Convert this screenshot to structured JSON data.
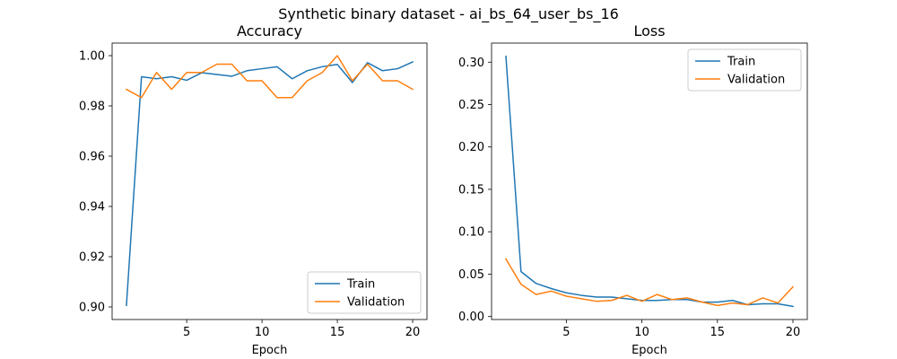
{
  "figure": {
    "suptitle": "Synthetic binary dataset - ai_bs_64_user_bs_16"
  },
  "chart_data": [
    {
      "type": "line",
      "title": "Accuracy",
      "xlabel": "Epoch",
      "ylabel": "",
      "xlim": [
        0.05,
        20.95
      ],
      "ylim": [
        0.895,
        1.005
      ],
      "xticks": [
        5,
        10,
        15,
        20
      ],
      "yticks": [
        0.9,
        0.92,
        0.94,
        0.96,
        0.98,
        1.0
      ],
      "ytick_labels": [
        "0.90",
        "0.92",
        "0.94",
        "0.96",
        "0.98",
        "1.00"
      ],
      "legend_position": "lower-right",
      "grid": false,
      "x": [
        1,
        2,
        3,
        4,
        5,
        6,
        7,
        8,
        9,
        10,
        11,
        12,
        13,
        14,
        15,
        16,
        17,
        18,
        19,
        20
      ],
      "series": [
        {
          "name": "Train",
          "color": "#1f77b4",
          "values": [
            0.9006,
            0.9916,
            0.9908,
            0.9916,
            0.9902,
            0.9932,
            0.9925,
            0.9918,
            0.994,
            0.9948,
            0.9956,
            0.9908,
            0.994,
            0.9956,
            0.9965,
            0.9893,
            0.9972,
            0.994,
            0.9948,
            0.9975
          ]
        },
        {
          "name": "Validation",
          "color": "#ff7f0e",
          "values": [
            0.9866,
            0.9833,
            0.9933,
            0.9866,
            0.9933,
            0.9933,
            0.9966,
            0.9966,
            0.99,
            0.99,
            0.9833,
            0.9833,
            0.99,
            0.9933,
            1.0,
            0.99,
            0.9966,
            0.99,
            0.99,
            0.9866
          ]
        }
      ]
    },
    {
      "type": "line",
      "title": "Loss",
      "xlabel": "Epoch",
      "ylabel": "",
      "xlim": [
        0.05,
        20.95
      ],
      "ylim": [
        -0.0035,
        0.3225
      ],
      "xticks": [
        5,
        10,
        15,
        20
      ],
      "yticks": [
        0.0,
        0.05,
        0.1,
        0.15,
        0.2,
        0.25,
        0.3
      ],
      "ytick_labels": [
        "0.00",
        "0.05",
        "0.10",
        "0.15",
        "0.20",
        "0.25",
        "0.30"
      ],
      "legend_position": "upper-right",
      "grid": false,
      "x": [
        1,
        2,
        3,
        4,
        5,
        6,
        7,
        8,
        9,
        10,
        11,
        12,
        13,
        14,
        15,
        16,
        17,
        18,
        19,
        20
      ],
      "series": [
        {
          "name": "Train",
          "color": "#1f77b4",
          "values": [
            0.307,
            0.053,
            0.039,
            0.033,
            0.028,
            0.025,
            0.023,
            0.023,
            0.021,
            0.019,
            0.019,
            0.02,
            0.02,
            0.017,
            0.017,
            0.019,
            0.014,
            0.015,
            0.015,
            0.012
          ]
        },
        {
          "name": "Validation",
          "color": "#ff7f0e",
          "values": [
            0.068,
            0.038,
            0.026,
            0.03,
            0.024,
            0.021,
            0.018,
            0.019,
            0.025,
            0.018,
            0.026,
            0.02,
            0.022,
            0.017,
            0.013,
            0.016,
            0.014,
            0.022,
            0.016,
            0.035
          ]
        }
      ]
    }
  ]
}
